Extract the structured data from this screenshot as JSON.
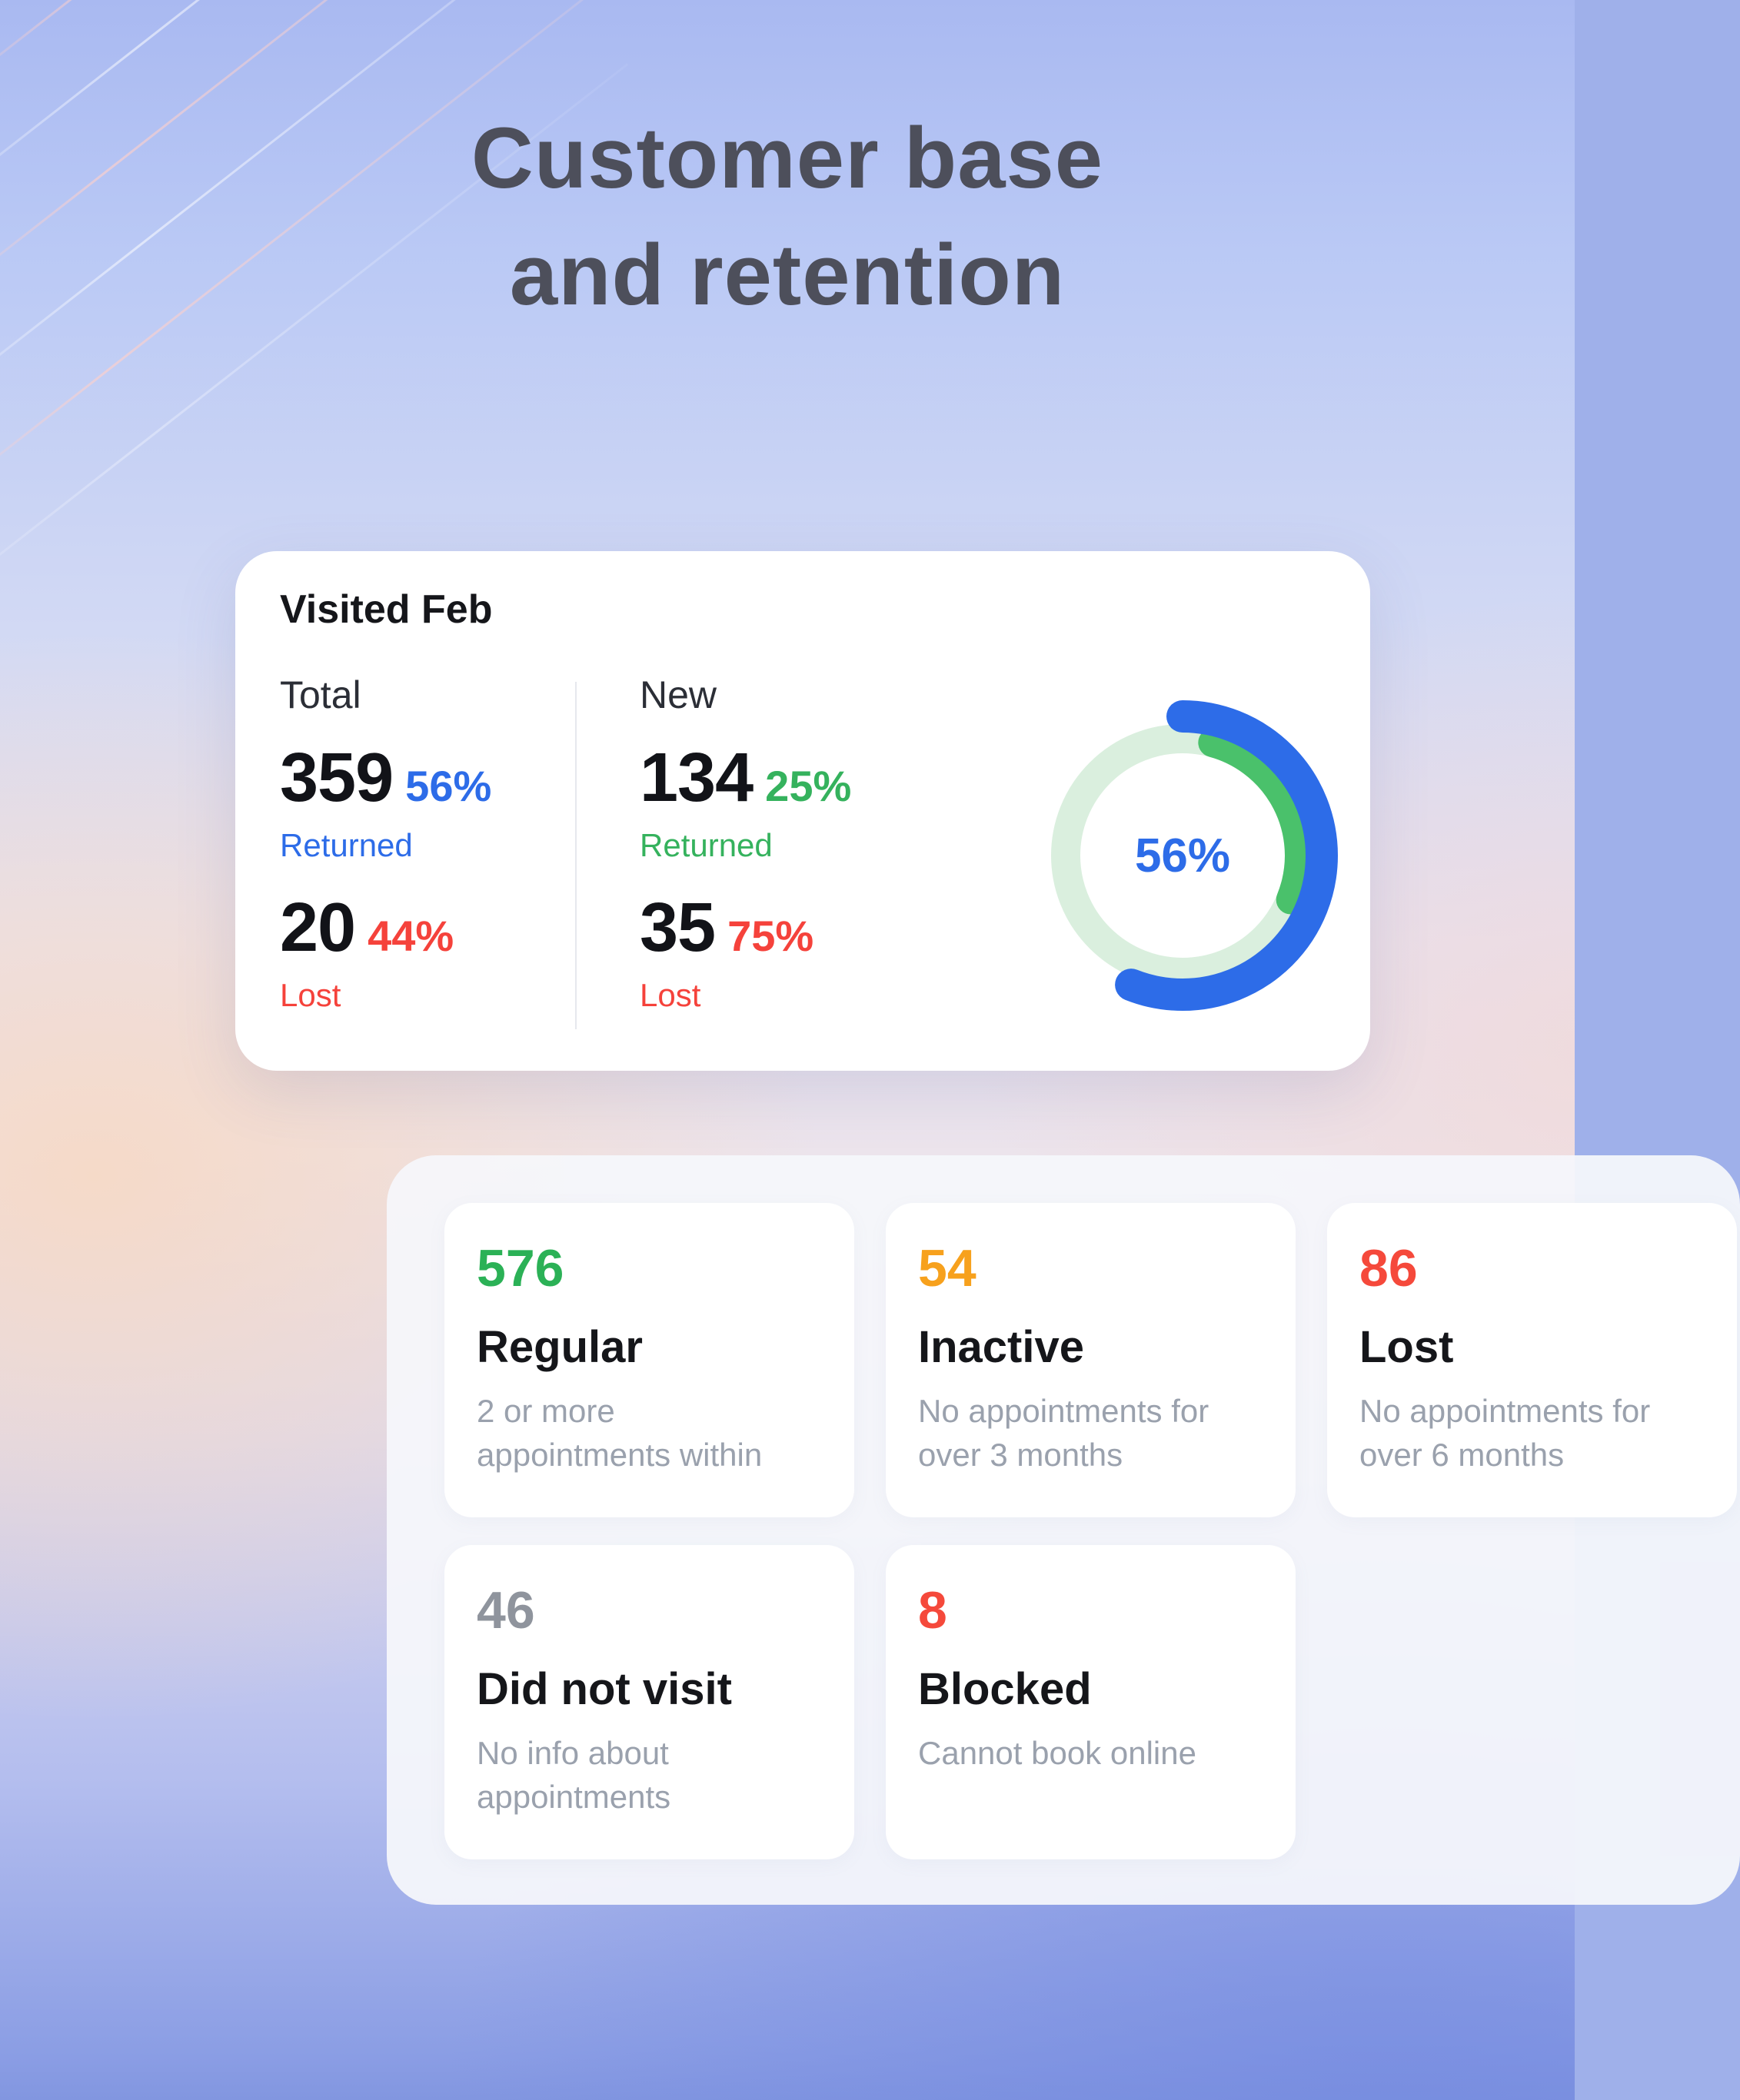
{
  "page": {
    "title_line1": "Customer base",
    "title_line2": "and retention"
  },
  "visited_card": {
    "title": "Visited Feb",
    "columns": [
      {
        "label": "Total",
        "returned": {
          "value": "359",
          "pct": "56%",
          "label": "Returned",
          "color": "#2d6ce8"
        },
        "lost": {
          "value": "20",
          "pct": "44%",
          "label": "Lost",
          "color": "#f5423b"
        }
      },
      {
        "label": "New",
        "returned": {
          "value": "134",
          "pct": "25%",
          "label": "Returned",
          "color": "#35b25d"
        },
        "lost": {
          "value": "35",
          "pct": "75%",
          "label": "Lost",
          "color": "#f5423b"
        }
      }
    ],
    "donut": {
      "center_label": "56%",
      "center_color": "#2d6ce8",
      "track": {
        "radius": 152,
        "width": 38,
        "color": "#daefde"
      },
      "segments": [
        {
          "name": "total-returned",
          "fraction": 0.56,
          "color": "#2d6ce8",
          "radius": 181,
          "width": 42
        },
        {
          "name": "new-returned",
          "fraction": 0.27,
          "color": "#4ac16b",
          "radius": 152,
          "width": 38
        }
      ]
    }
  },
  "stats_panel": {
    "cards": [
      {
        "value": "576",
        "color": "#2bb156",
        "title": "Regular",
        "desc": "2 or more\nappointments within"
      },
      {
        "value": "54",
        "color": "#f7a11d",
        "title": "Inactive",
        "desc": "No appointments for\nover 3 months"
      },
      {
        "value": "86",
        "color": "#f5493b",
        "title": "Lost",
        "desc": "No appointments for\nover 6 months"
      },
      {
        "value": "46",
        "color": "#8f949d",
        "title": "Did not visit",
        "desc": "No info about\nappointments"
      },
      {
        "value": "8",
        "color": "#f5493b",
        "title": "Blocked",
        "desc": "Cannot book online"
      }
    ]
  }
}
